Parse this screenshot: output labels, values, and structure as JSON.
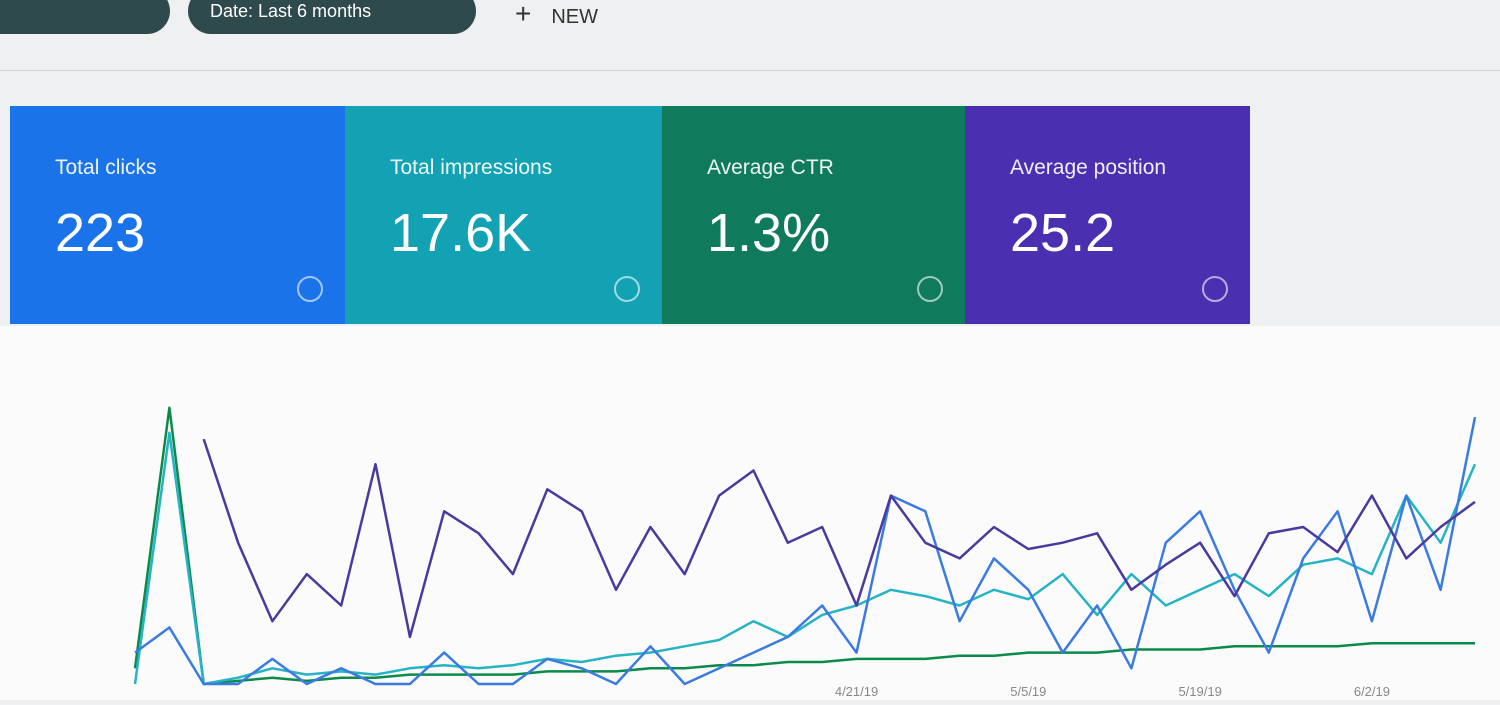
{
  "toolbar": {
    "filters": [
      "Date: Last 6 months"
    ],
    "new_button": "NEW"
  },
  "cards": [
    {
      "label": "Total clicks",
      "value": "223",
      "color": "#1a73e8"
    },
    {
      "label": "Total impressions",
      "value": "17.6K",
      "color": "#12a2b4"
    },
    {
      "label": "Average CTR",
      "value": "1.3%",
      "color": "#0f7a5c"
    },
    {
      "label": "Average position",
      "value": "25.2",
      "color": "#4a2fb0"
    }
  ],
  "chart_data": {
    "type": "line",
    "categories": [
      null,
      null,
      null,
      null,
      null,
      null,
      null,
      null,
      null,
      null,
      null,
      null,
      null,
      null,
      null,
      null,
      null,
      null,
      null,
      null,
      null,
      "4/21/19",
      null,
      null,
      null,
      null,
      "5/5/19",
      null,
      null,
      null,
      null,
      "5/19/19",
      null,
      null,
      null,
      null,
      "6/2/19",
      null,
      null,
      null
    ],
    "ylim": [
      0,
      100
    ],
    "series": [
      {
        "color": "#0b8a4a",
        "values": [
          5,
          88,
          0,
          1,
          2,
          1,
          2,
          2,
          3,
          3,
          3,
          3,
          4,
          4,
          4,
          5,
          5,
          6,
          6,
          7,
          7,
          8,
          8,
          8,
          9,
          9,
          10,
          10,
          10,
          11,
          11,
          11,
          12,
          12,
          12,
          12,
          13,
          13,
          13,
          13
        ]
      },
      {
        "color": "#26b3c4",
        "values": [
          0,
          80,
          0,
          2,
          5,
          3,
          4,
          3,
          5,
          6,
          5,
          6,
          8,
          7,
          9,
          10,
          12,
          14,
          20,
          15,
          22,
          25,
          30,
          28,
          25,
          30,
          27,
          35,
          22,
          35,
          25,
          30,
          35,
          28,
          38,
          40,
          35,
          60,
          45,
          70
        ]
      },
      {
        "color": "#3b7be0",
        "values": [
          10,
          18,
          0,
          0,
          8,
          0,
          5,
          0,
          0,
          10,
          0,
          0,
          8,
          5,
          0,
          12,
          0,
          5,
          10,
          15,
          25,
          10,
          60,
          55,
          20,
          40,
          30,
          10,
          25,
          5,
          45,
          55,
          30,
          10,
          40,
          55,
          20,
          60,
          30,
          85
        ]
      },
      {
        "color": "#4b3a9e",
        "values": [
          null,
          null,
          78,
          45,
          20,
          35,
          25,
          70,
          15,
          55,
          48,
          35,
          62,
          55,
          30,
          50,
          35,
          60,
          68,
          45,
          50,
          25,
          60,
          45,
          40,
          50,
          43,
          45,
          48,
          30,
          38,
          45,
          28,
          48,
          50,
          42,
          60,
          40,
          50,
          58
        ]
      }
    ]
  }
}
